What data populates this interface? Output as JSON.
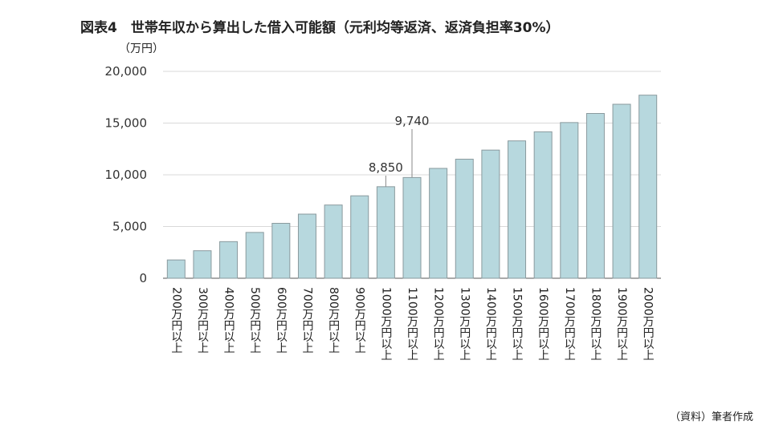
{
  "title": "図表4　世帯年収から算出した借入可能額（元利均等返済、返済負担率30%）",
  "unit": "（万円）",
  "source": "（資料）筆者作成",
  "colors": {
    "bar_fill": "#b7d8de",
    "bar_stroke": "#8a9a9e",
    "grid": "#d9d9d9",
    "axis": "#555555"
  },
  "chart_data": {
    "type": "bar",
    "title": "図表4　世帯年収から算出した借入可能額（元利均等返済、返済負担率30%）",
    "ylabel": "（万円）",
    "xlabel": "",
    "ylim": [
      0,
      20000
    ],
    "yticks": [
      0,
      5000,
      10000,
      15000,
      20000
    ],
    "ytick_labels": [
      "0",
      "5,000",
      "10,000",
      "15,000",
      "20,000"
    ],
    "grid": true,
    "categories": [
      "200万円以上",
      "300万円以上",
      "400万円以上",
      "500万円以上",
      "600万円以上",
      "700万円以上",
      "800万円以上",
      "900万円以上",
      "1000万円以上",
      "1100万円以上",
      "1200万円以上",
      "1300万円以上",
      "1400万円以上",
      "1500万円以上",
      "1600万円以上",
      "1700万円以上",
      "1800万円以上",
      "1900万円以上",
      "2000万円以上"
    ],
    "values": [
      1770,
      2660,
      3540,
      4430,
      5310,
      6200,
      7080,
      7970,
      8850,
      9740,
      10620,
      11510,
      12390,
      13280,
      14160,
      15050,
      15930,
      16820,
      17700
    ],
    "data_labels": [
      {
        "index": 8,
        "text": "8,850"
      },
      {
        "index": 9,
        "text": "9,740"
      }
    ]
  }
}
